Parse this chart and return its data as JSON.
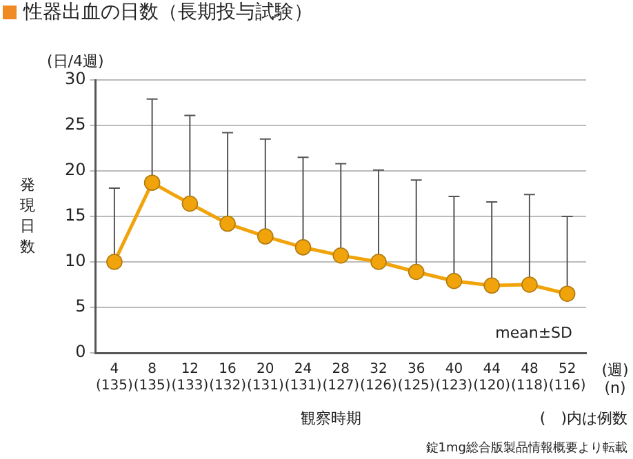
{
  "chart_data": {
    "type": "line",
    "title": "性器出血の日数（長期投与試験）",
    "ylabel": "発現日数",
    "xlabel": "観察時期",
    "categories": [
      "4\n(135)",
      "8\n(135)",
      "12\n(133)",
      "16\n(132)",
      "20\n(131)",
      "24\n(131)",
      "28\n(127)",
      "32\n(126)",
      "36\n(125)",
      "40\n(123)",
      "44\n(120)",
      "48\n(118)",
      "52\n(116)"
    ],
    "series": [
      {
        "color": "#f0a30a",
        "values": [
          10.0,
          18.7,
          16.4,
          14.2,
          12.8,
          11.6,
          10.7,
          10.0,
          8.9,
          7.9,
          7.4,
          7.5,
          6.5
        ],
        "errors": [
          [
            10.0,
            18.1
          ],
          [
            18.7,
            27.9
          ],
          [
            16.4,
            26.1
          ],
          [
            14.2,
            24.2
          ],
          [
            12.8,
            23.5
          ],
          [
            11.6,
            21.5
          ],
          [
            10.7,
            20.8
          ],
          [
            10.0,
            20.1
          ],
          [
            8.9,
            19.0
          ],
          [
            7.9,
            17.2
          ],
          [
            7.4,
            16.6
          ],
          [
            7.5,
            17.4
          ],
          [
            6.5,
            15.0
          ]
        ]
      }
    ],
    "ylim": [
      0,
      30
    ],
    "yticks": [
      0,
      5,
      10,
      15,
      20,
      25,
      30
    ],
    "grid": "y",
    "legend": false,
    "marker": "circle",
    "line_style": "solid",
    "annotations": [
      "(日/4週)",
      "mean±SD",
      "(週)\n(n)",
      "(　)内は例数",
      "錠1mg総合版製品情報概要より転載"
    ]
  }
}
